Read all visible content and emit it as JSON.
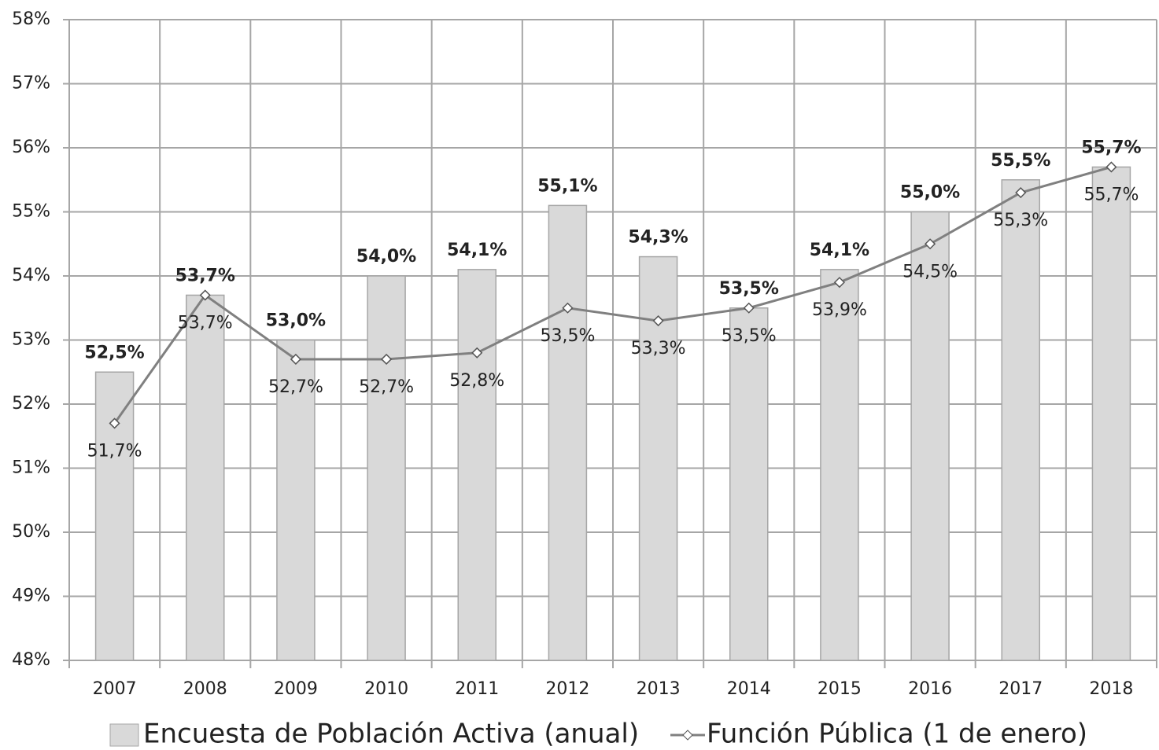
{
  "chart_data": {
    "type": "bar",
    "categories": [
      "2007",
      "2008",
      "2009",
      "2010",
      "2011",
      "2012",
      "2013",
      "2014",
      "2015",
      "2016",
      "2017",
      "2018"
    ],
    "series": [
      {
        "name": "Encuesta de Población Activa (anual)",
        "type": "bar",
        "color": "#d9d9d9",
        "values": [
          52.5,
          53.7,
          53.0,
          54.0,
          54.1,
          55.1,
          54.3,
          53.5,
          54.1,
          55.0,
          55.5,
          55.7
        ],
        "value_labels": [
          "52,5%",
          "53,7%",
          "53,0%",
          "54,0%",
          "54,1%",
          "55,1%",
          "54,3%",
          "53,5%",
          "54,1%",
          "55,0%",
          "55,5%",
          "55,7%"
        ]
      },
      {
        "name": "Función Pública (1 de enero)",
        "type": "line",
        "color": "#808080",
        "values": [
          51.7,
          53.7,
          52.7,
          52.7,
          52.8,
          53.5,
          53.3,
          53.5,
          53.9,
          54.5,
          55.3,
          55.7
        ],
        "value_labels": [
          "51,7%",
          "53,7%",
          "52,7%",
          "52,7%",
          "52,8%",
          "53,5%",
          "53,3%",
          "53,5%",
          "53,9%",
          "54,5%",
          "55,3%",
          "55,7%"
        ]
      }
    ],
    "ylim": [
      48,
      58
    ],
    "yticks": [
      {
        "value": 48,
        "label": "48%"
      },
      {
        "value": 49,
        "label": "49%"
      },
      {
        "value": 50,
        "label": "50%"
      },
      {
        "value": 51,
        "label": "51%"
      },
      {
        "value": 52,
        "label": "52%"
      },
      {
        "value": 53,
        "label": "53%"
      },
      {
        "value": 54,
        "label": "54%"
      },
      {
        "value": 55,
        "label": "55%"
      },
      {
        "value": 56,
        "label": "56%"
      },
      {
        "value": 57,
        "label": "57%"
      },
      {
        "value": 58,
        "label": "58%"
      }
    ],
    "grid": true,
    "legend": "bottom"
  }
}
